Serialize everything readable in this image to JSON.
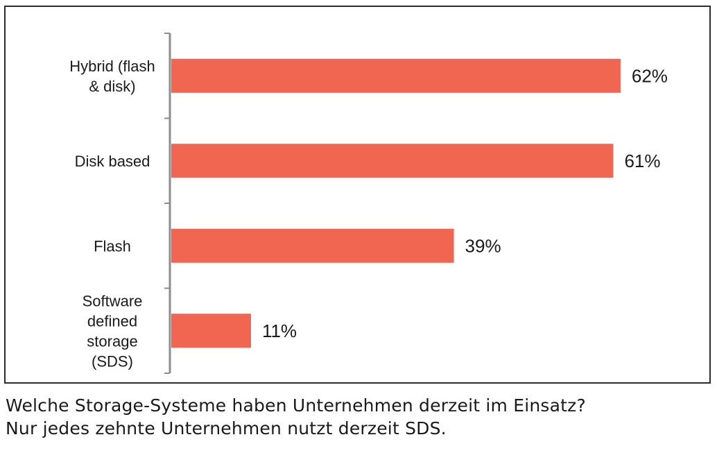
{
  "chart_data": {
    "type": "bar",
    "orientation": "horizontal",
    "categories": [
      [
        "Hybrid (flash",
        "& disk)"
      ],
      [
        "Disk based"
      ],
      [
        "Flash"
      ],
      [
        "Software",
        "defined",
        "storage",
        "(SDS)"
      ]
    ],
    "values": [
      62,
      61,
      39,
      11
    ],
    "value_labels": [
      "62%",
      "61%",
      "39%",
      "11%"
    ],
    "unit": "%",
    "xlim": [
      0,
      65
    ],
    "bar_color": "#f06650",
    "axis_color": "#8c8c8c",
    "grid": false,
    "legend": "none"
  },
  "caption": {
    "line1": "Welche Storage-Systeme haben Unternehmen derzeit im Einsatz?",
    "line2": "Nur jedes zehnte Unternehmen nutzt derzeit SDS."
  }
}
